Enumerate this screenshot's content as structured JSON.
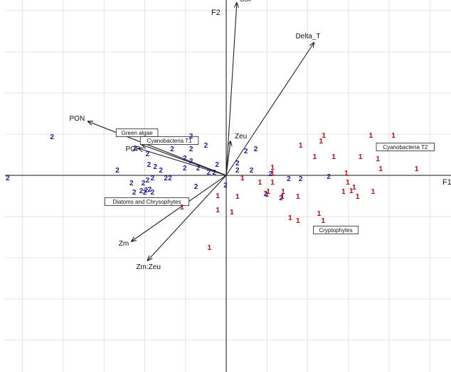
{
  "chart_data": {
    "type": "scatter",
    "xlabel": "F1",
    "ylabel": "F2",
    "xlim": [
      -31.5,
      32
    ],
    "ylim": [
      -27.7,
      24.7
    ],
    "grid": true,
    "colors": {
      "1": "#cc0000",
      "2": "#1a1aaa",
      "text": "#111111"
    },
    "vectors": [
      {
        "label": "SSI",
        "x": 1.5,
        "y": 24.3
      },
      {
        "label": "Delta_T",
        "x": 12.5,
        "y": 18.7
      },
      {
        "label": "PON",
        "x": -19.7,
        "y": 7.6
      },
      {
        "label": "N,P",
        "x": -12.0,
        "y": 4.3
      },
      {
        "label": "POP",
        "x": -12.5,
        "y": 3.8
      },
      {
        "label": "Zeu",
        "x": 0.6,
        "y": 4.8
      },
      {
        "label": "Zm",
        "x": -13.5,
        "y": -9.3
      },
      {
        "label": "Zm:Zeu",
        "x": -11.2,
        "y": -12.0
      }
    ],
    "group_labels": [
      {
        "label": "Green algae",
        "x": -12.7,
        "y": 6.0
      },
      {
        "label": "Cyanobacteria T1",
        "x": -8.1,
        "y": 4.9
      },
      {
        "label": "Cyanobacteria T2",
        "x": 25.5,
        "y": 4.0
      },
      {
        "label": "Diatoms and Chrysophytes",
        "x": -11.3,
        "y": -3.7
      },
      {
        "label": "Cryptophytes",
        "x": 15.6,
        "y": -7.7
      }
    ],
    "series": [
      {
        "name": "1",
        "points": [
          [
            13.9,
            5.7
          ],
          [
            13.5,
            4.9
          ],
          [
            20.6,
            5.7
          ],
          [
            23.8,
            5.7
          ],
          [
            10.6,
            4.3
          ],
          [
            12.6,
            2.7
          ],
          [
            15.3,
            2.7
          ],
          [
            19.1,
            2.7
          ],
          [
            21.6,
            2.4
          ],
          [
            22.0,
            1.0
          ],
          [
            27.1,
            1.0
          ],
          [
            6.6,
            1.2
          ],
          [
            6.6,
            0.4
          ],
          [
            6.6,
            -0.9
          ],
          [
            17.1,
            0.4
          ],
          [
            17.3,
            -0.9
          ],
          [
            17.8,
            -2.1
          ],
          [
            18.2,
            -1.6
          ],
          [
            16.7,
            -2.2
          ],
          [
            18.7,
            -2.9
          ],
          [
            20.9,
            -2.2
          ],
          [
            2.3,
            -0.3
          ],
          [
            4.8,
            -0.9
          ],
          [
            6.0,
            -2.2
          ],
          [
            8.1,
            -2.2
          ],
          [
            8.0,
            -2.9
          ],
          [
            5.8,
            -2.6
          ],
          [
            10.2,
            -2.9
          ],
          [
            -1.2,
            -2.8
          ],
          [
            1.6,
            -2.9
          ],
          [
            -6.3,
            -4.4
          ],
          [
            -1.2,
            -4.8
          ],
          [
            0.8,
            -5.1
          ],
          [
            13.2,
            -5.3
          ],
          [
            9.1,
            -5.9
          ],
          [
            10.2,
            -6.3
          ],
          [
            13.8,
            -6.3
          ],
          [
            -2.4,
            -10.1
          ]
        ]
      },
      {
        "name": "2",
        "points": [
          [
            -24.8,
            5.5
          ],
          [
            -31.1,
            -0.3
          ],
          [
            -5.0,
            5.6
          ],
          [
            -2.9,
            4.3
          ],
          [
            -13.0,
            3.9
          ],
          [
            -7.7,
            3.8
          ],
          [
            -5.0,
            3.8
          ],
          [
            -11.2,
            3.1
          ],
          [
            -5.9,
            2.5
          ],
          [
            -5.0,
            2.1
          ],
          [
            -11.0,
            1.6
          ],
          [
            -1.3,
            1.6
          ],
          [
            -15.5,
            0.8
          ],
          [
            -10.1,
            1.3
          ],
          [
            -9.3,
            0.8
          ],
          [
            -5.9,
            1.1
          ],
          [
            -4.0,
            1.1
          ],
          [
            -2.5,
            0.5
          ],
          [
            -1.7,
            0.5
          ],
          [
            -10.5,
            -0.3
          ],
          [
            -8.0,
            -0.3
          ],
          [
            -13.5,
            -1.0
          ],
          [
            -11.8,
            -1.0
          ],
          [
            -11.2,
            -0.6
          ],
          [
            -8.6,
            -0.3
          ],
          [
            -10.9,
            -1.9
          ],
          [
            -4.3,
            -1.5
          ],
          [
            -0.1,
            -1.3
          ],
          [
            -11.6,
            -2.3
          ],
          [
            -10.5,
            -2.3
          ],
          [
            -13.1,
            -2.3
          ],
          [
            -12.1,
            -2.1
          ],
          [
            -11.4,
            -2.0
          ],
          [
            2.8,
            3.5
          ],
          [
            4.2,
            3.8
          ],
          [
            1.6,
            1.8
          ],
          [
            3.6,
            0.8
          ],
          [
            1.6,
            0.8
          ],
          [
            6.3,
            0.3
          ],
          [
            8.9,
            -0.4
          ],
          [
            10.6,
            -0.4
          ],
          [
            14.6,
            -0.1
          ],
          [
            5.6,
            -2.5
          ],
          [
            7.8,
            -3.1
          ]
        ]
      }
    ]
  }
}
